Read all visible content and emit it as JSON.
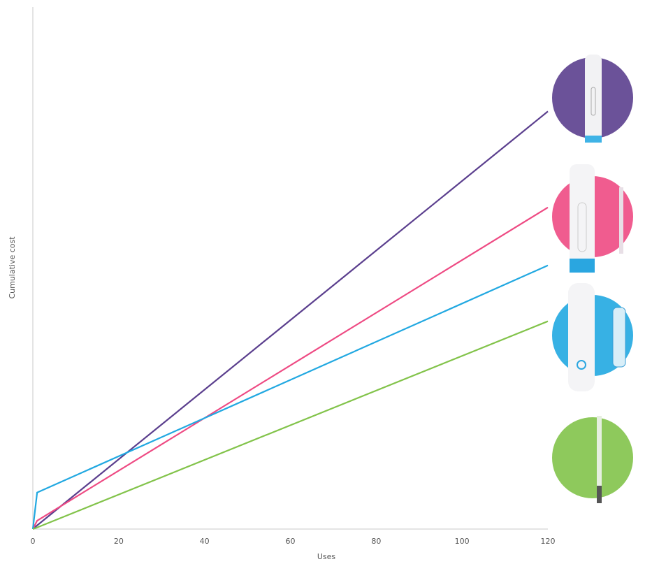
{
  "chart_data": {
    "type": "line",
    "x_label": "Uses",
    "y_label": "Cumulative cost",
    "x": [
      0,
      1,
      120
    ],
    "xlim": [
      0,
      120
    ],
    "xticks": [
      0,
      20,
      40,
      60,
      80,
      100,
      120
    ],
    "ylim": [
      0,
      100
    ],
    "series": [
      {
        "color": "#5b3f8e",
        "values": [
          0,
          0.7,
          80
        ]
      },
      {
        "color": "#ee4a83",
        "values": [
          0,
          1.6,
          61.6
        ]
      },
      {
        "color": "#21a8e1",
        "values": [
          0,
          7,
          50.5
        ]
      },
      {
        "color": "#82c34a",
        "values": [
          0,
          0.3,
          39.8
        ]
      }
    ]
  }
}
